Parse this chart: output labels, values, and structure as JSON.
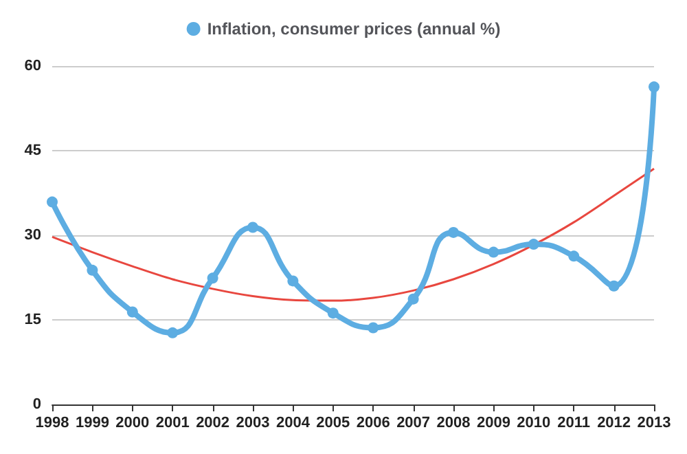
{
  "chart_data": {
    "type": "line",
    "categories": [
      "1998",
      "1999",
      "2000",
      "2001",
      "2002",
      "2003",
      "2004",
      "2005",
      "2006",
      "2007",
      "2008",
      "2009",
      "2010",
      "2011",
      "2012",
      "2013"
    ],
    "series": [
      {
        "name": "Inflation, consumer prices (annual %)",
        "color": "#5dade2",
        "marker": "circle",
        "values": [
          35.9,
          23.8,
          16.4,
          12.7,
          22.4,
          31.4,
          21.9,
          16.2,
          13.6,
          18.7,
          30.5,
          27.0,
          28.4,
          26.3,
          21.0,
          56.3
        ]
      },
      {
        "type": "line",
        "color": "#e8473f",
        "marker": "none",
        "values": [
          29.7,
          27.0,
          24.5,
          22.2,
          20.5,
          19.2,
          18.5,
          18.4,
          18.9,
          20.2,
          22.2,
          24.9,
          28.3,
          32.3,
          37.0,
          41.8
        ]
      }
    ],
    "ylim": [
      0,
      60
    ],
    "yticks": [
      0,
      15,
      30,
      45,
      60
    ],
    "grid": "y",
    "legend": "top"
  }
}
